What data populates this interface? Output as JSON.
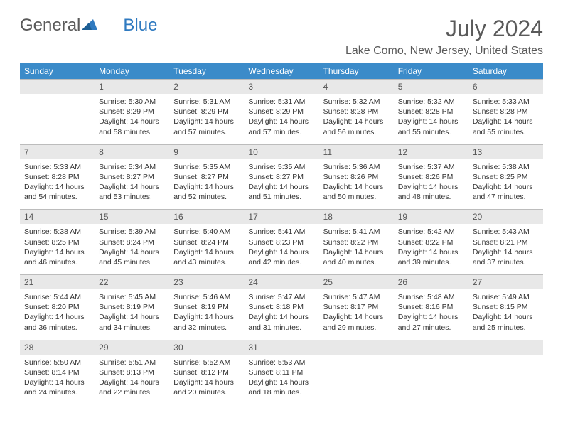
{
  "brand": {
    "part1": "General",
    "part2": "Blue"
  },
  "title": "July 2024",
  "location": "Lake Como, New Jersey, United States",
  "colors": {
    "header_bg": "#3b8bc9",
    "header_fg": "#ffffff",
    "daynum_bg": "#e8e8e8",
    "border": "#bcbcbc",
    "text": "#333333",
    "title": "#5a5a5a"
  },
  "weekdays": [
    "Sunday",
    "Monday",
    "Tuesday",
    "Wednesday",
    "Thursday",
    "Friday",
    "Saturday"
  ],
  "weeks": [
    {
      "nums": [
        "",
        "1",
        "2",
        "3",
        "4",
        "5",
        "6"
      ],
      "cells": [
        null,
        {
          "sr": "5:30 AM",
          "ss": "8:29 PM",
          "dl": "14 hours and 58 minutes."
        },
        {
          "sr": "5:31 AM",
          "ss": "8:29 PM",
          "dl": "14 hours and 57 minutes."
        },
        {
          "sr": "5:31 AM",
          "ss": "8:29 PM",
          "dl": "14 hours and 57 minutes."
        },
        {
          "sr": "5:32 AM",
          "ss": "8:28 PM",
          "dl": "14 hours and 56 minutes."
        },
        {
          "sr": "5:32 AM",
          "ss": "8:28 PM",
          "dl": "14 hours and 55 minutes."
        },
        {
          "sr": "5:33 AM",
          "ss": "8:28 PM",
          "dl": "14 hours and 55 minutes."
        }
      ]
    },
    {
      "nums": [
        "7",
        "8",
        "9",
        "10",
        "11",
        "12",
        "13"
      ],
      "cells": [
        {
          "sr": "5:33 AM",
          "ss": "8:28 PM",
          "dl": "14 hours and 54 minutes."
        },
        {
          "sr": "5:34 AM",
          "ss": "8:27 PM",
          "dl": "14 hours and 53 minutes."
        },
        {
          "sr": "5:35 AM",
          "ss": "8:27 PM",
          "dl": "14 hours and 52 minutes."
        },
        {
          "sr": "5:35 AM",
          "ss": "8:27 PM",
          "dl": "14 hours and 51 minutes."
        },
        {
          "sr": "5:36 AM",
          "ss": "8:26 PM",
          "dl": "14 hours and 50 minutes."
        },
        {
          "sr": "5:37 AM",
          "ss": "8:26 PM",
          "dl": "14 hours and 48 minutes."
        },
        {
          "sr": "5:38 AM",
          "ss": "8:25 PM",
          "dl": "14 hours and 47 minutes."
        }
      ]
    },
    {
      "nums": [
        "14",
        "15",
        "16",
        "17",
        "18",
        "19",
        "20"
      ],
      "cells": [
        {
          "sr": "5:38 AM",
          "ss": "8:25 PM",
          "dl": "14 hours and 46 minutes."
        },
        {
          "sr": "5:39 AM",
          "ss": "8:24 PM",
          "dl": "14 hours and 45 minutes."
        },
        {
          "sr": "5:40 AM",
          "ss": "8:24 PM",
          "dl": "14 hours and 43 minutes."
        },
        {
          "sr": "5:41 AM",
          "ss": "8:23 PM",
          "dl": "14 hours and 42 minutes."
        },
        {
          "sr": "5:41 AM",
          "ss": "8:22 PM",
          "dl": "14 hours and 40 minutes."
        },
        {
          "sr": "5:42 AM",
          "ss": "8:22 PM",
          "dl": "14 hours and 39 minutes."
        },
        {
          "sr": "5:43 AM",
          "ss": "8:21 PM",
          "dl": "14 hours and 37 minutes."
        }
      ]
    },
    {
      "nums": [
        "21",
        "22",
        "23",
        "24",
        "25",
        "26",
        "27"
      ],
      "cells": [
        {
          "sr": "5:44 AM",
          "ss": "8:20 PM",
          "dl": "14 hours and 36 minutes."
        },
        {
          "sr": "5:45 AM",
          "ss": "8:19 PM",
          "dl": "14 hours and 34 minutes."
        },
        {
          "sr": "5:46 AM",
          "ss": "8:19 PM",
          "dl": "14 hours and 32 minutes."
        },
        {
          "sr": "5:47 AM",
          "ss": "8:18 PM",
          "dl": "14 hours and 31 minutes."
        },
        {
          "sr": "5:47 AM",
          "ss": "8:17 PM",
          "dl": "14 hours and 29 minutes."
        },
        {
          "sr": "5:48 AM",
          "ss": "8:16 PM",
          "dl": "14 hours and 27 minutes."
        },
        {
          "sr": "5:49 AM",
          "ss": "8:15 PM",
          "dl": "14 hours and 25 minutes."
        }
      ]
    },
    {
      "nums": [
        "28",
        "29",
        "30",
        "31",
        "",
        "",
        ""
      ],
      "cells": [
        {
          "sr": "5:50 AM",
          "ss": "8:14 PM",
          "dl": "14 hours and 24 minutes."
        },
        {
          "sr": "5:51 AM",
          "ss": "8:13 PM",
          "dl": "14 hours and 22 minutes."
        },
        {
          "sr": "5:52 AM",
          "ss": "8:12 PM",
          "dl": "14 hours and 20 minutes."
        },
        {
          "sr": "5:53 AM",
          "ss": "8:11 PM",
          "dl": "14 hours and 18 minutes."
        },
        null,
        null,
        null
      ]
    }
  ]
}
